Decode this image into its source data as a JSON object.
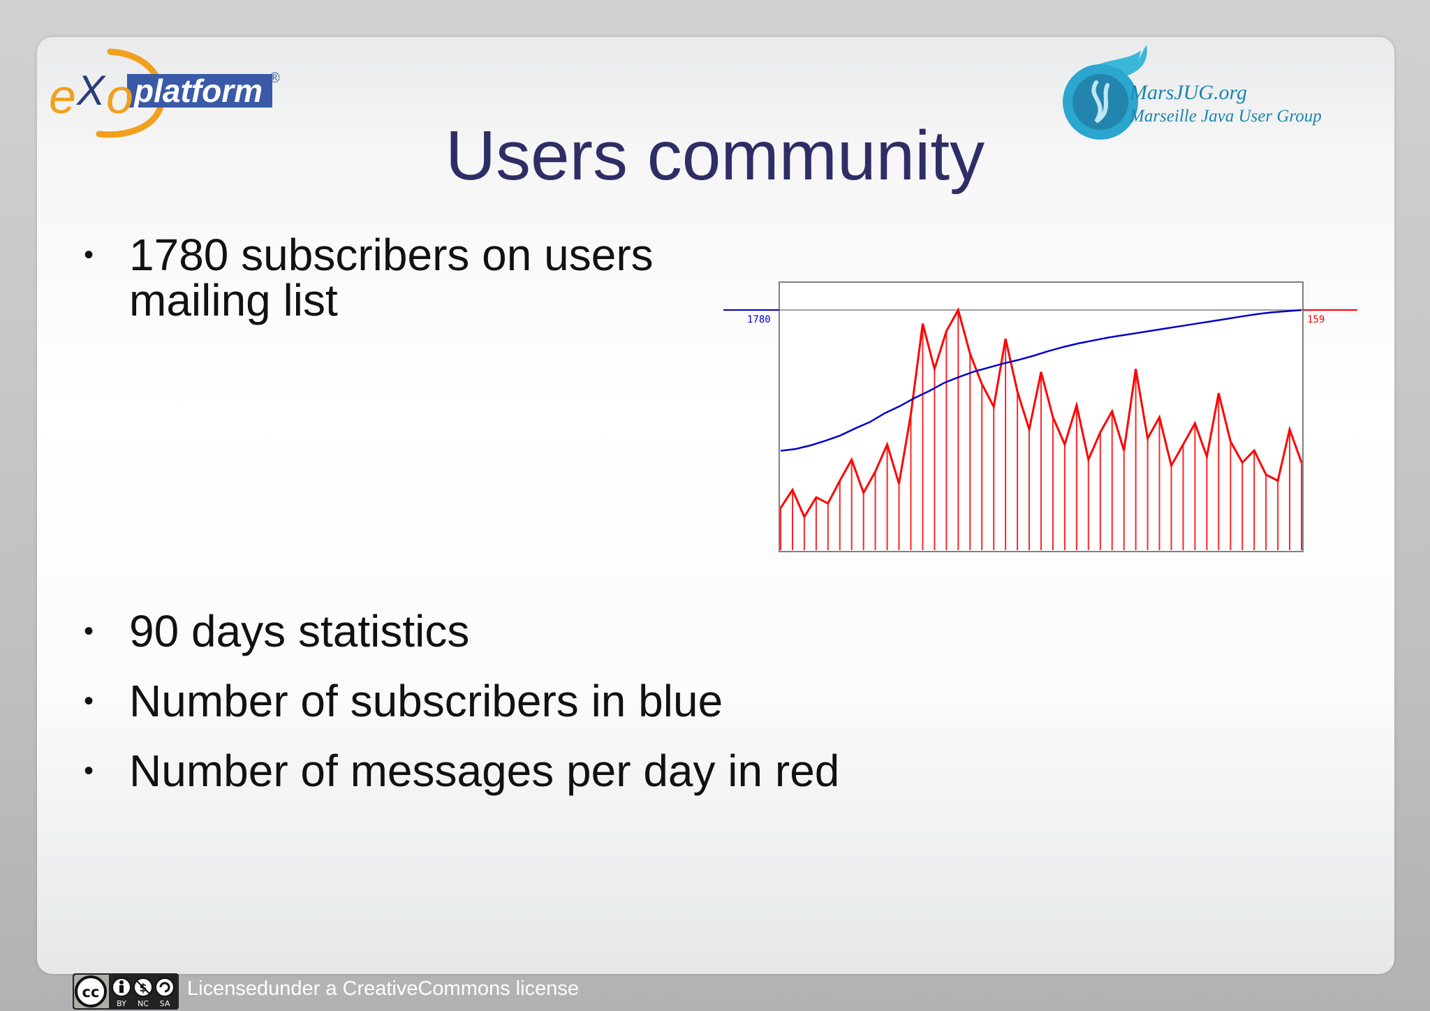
{
  "slide": {
    "title": "Users community",
    "bullets": [
      {
        "line1": "1780 subscribers on users",
        "line2": "mailing list"
      },
      {
        "line1": "90 days statistics"
      },
      {
        "line1": "Number of subscribers in blue"
      },
      {
        "line1": "Number of messages per day in red"
      }
    ],
    "bullet_glyph": "•"
  },
  "logos": {
    "exo": {
      "text_e": "e",
      "text_x": "X",
      "text_o": "o",
      "text_platform": "platform",
      "registered": "®"
    },
    "marsjug": {
      "line1": "MarsJUG.org",
      "line2": "Marseille Java User Group"
    }
  },
  "footer": {
    "license_text": "Licensedunder a CreativeCommons license",
    "cc_labels": {
      "cc": "cc",
      "by": "BY",
      "nc": "NC",
      "sa": "SA"
    }
  },
  "colors": {
    "title": "#2f2d66",
    "subscribers": "#0000cc",
    "messages": "#ff0000"
  },
  "chart_data": {
    "type": "line",
    "grid": false,
    "series": [
      {
        "name": "subscribers",
        "color": "#0000cc",
        "end_label": "1780",
        "values": [
          1300,
          1306,
          1318,
          1334,
          1352,
          1376,
          1398,
          1428,
          1452,
          1480,
          1504,
          1532,
          1552,
          1570,
          1584,
          1598,
          1610,
          1624,
          1640,
          1654,
          1666,
          1676,
          1686,
          1694,
          1702,
          1710,
          1718,
          1726,
          1734,
          1742,
          1750,
          1758,
          1766,
          1772,
          1776,
          1780
        ]
      },
      {
        "name": "messages",
        "color": "#ff0000",
        "end_label": "159",
        "values": [
          28,
          40,
          22,
          35,
          31,
          46,
          60,
          38,
          52,
          70,
          44,
          90,
          150,
          120,
          145,
          159,
          130,
          110,
          95,
          140,
          105,
          80,
          118,
          88,
          70,
          96,
          60,
          78,
          92,
          66,
          120,
          74,
          88,
          56,
          70,
          84,
          62,
          104,
          72,
          58,
          66,
          50,
          46,
          80,
          58
        ]
      }
    ]
  }
}
